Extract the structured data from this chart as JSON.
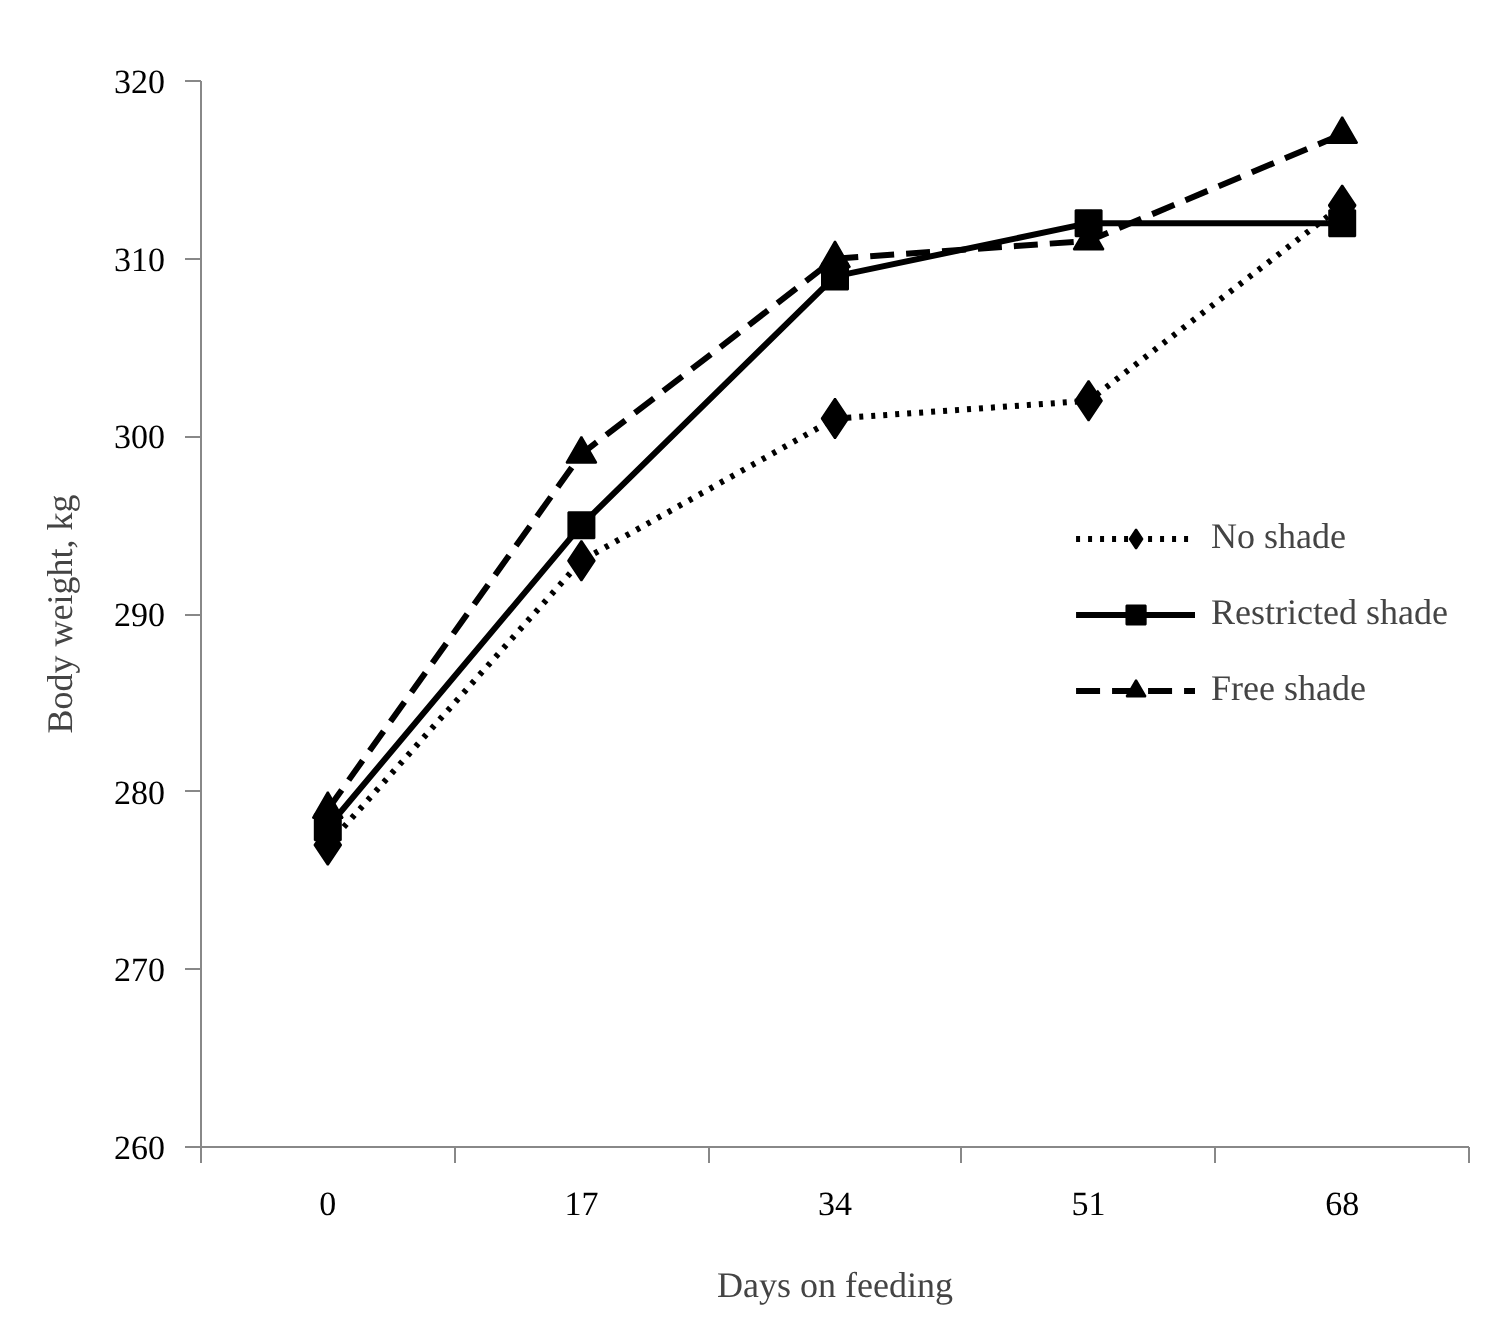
{
  "chart_data": {
    "type": "line",
    "xlabel": "Days on feeding",
    "ylabel": "Body weight, kg",
    "categories": [
      "0",
      "17",
      "34",
      "51",
      "68"
    ],
    "ylim": [
      260,
      320
    ],
    "yticks": [
      260,
      270,
      280,
      290,
      300,
      310,
      320
    ],
    "grid": false,
    "legend": "right",
    "series": [
      {
        "name": "No shade",
        "color": "#000000",
        "marker": "diamond",
        "line_style": "dotted",
        "values": [
          277,
          293,
          301,
          302,
          313
        ]
      },
      {
        "name": "Restricted shade",
        "color": "#000000",
        "marker": "square",
        "line_style": "solid",
        "values": [
          278,
          295,
          309,
          312,
          312
        ]
      },
      {
        "name": "Free shade",
        "color": "#000000",
        "marker": "triangle",
        "line_style": "dashed",
        "values": [
          279,
          299,
          310,
          311,
          317
        ]
      }
    ]
  }
}
